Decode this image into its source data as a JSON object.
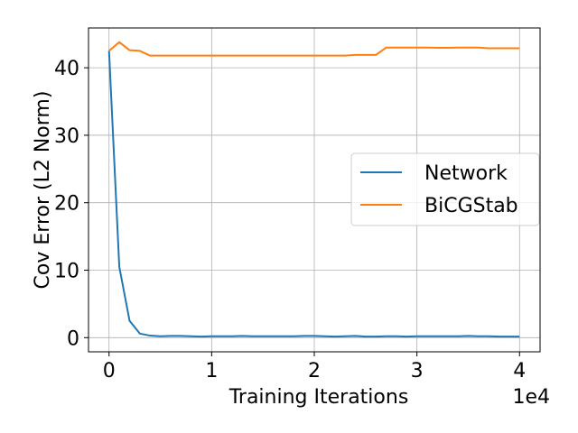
{
  "chart_data": {
    "type": "line",
    "title": "",
    "xlabel": "Training Iterations",
    "ylabel": "Cov Error (L2 Norm)",
    "x_offset_label": "1e4",
    "xlim": [
      -0.2,
      4.2
    ],
    "ylim": [
      -2.1,
      45.9
    ],
    "xticks": [
      0,
      1,
      2,
      3,
      4
    ],
    "xtick_labels": [
      "0",
      "1",
      "2",
      "3",
      "4"
    ],
    "yticks": [
      0,
      10,
      20,
      30,
      40
    ],
    "ytick_labels": [
      "0",
      "10",
      "20",
      "30",
      "40"
    ],
    "grid": true,
    "legend_position": "center-right",
    "x": [
      0,
      0.1,
      0.2,
      0.3,
      0.4,
      0.5,
      0.6,
      0.7,
      0.8,
      0.9,
      1.0,
      1.1,
      1.2,
      1.3,
      1.4,
      1.5,
      1.6,
      1.7,
      1.8,
      1.9,
      2.0,
      2.1,
      2.2,
      2.3,
      2.4,
      2.5,
      2.6,
      2.7,
      2.8,
      2.9,
      3.0,
      3.1,
      3.2,
      3.3,
      3.4,
      3.5,
      3.6,
      3.7,
      3.8,
      3.9,
      4.0
    ],
    "series": [
      {
        "name": "Network",
        "color": "#1f77b4",
        "values": [
          42.5,
          10.5,
          2.5,
          0.6,
          0.3,
          0.2,
          0.25,
          0.25,
          0.2,
          0.15,
          0.2,
          0.2,
          0.2,
          0.25,
          0.2,
          0.2,
          0.2,
          0.2,
          0.2,
          0.25,
          0.25,
          0.2,
          0.15,
          0.2,
          0.25,
          0.15,
          0.15,
          0.2,
          0.2,
          0.15,
          0.2,
          0.2,
          0.2,
          0.2,
          0.2,
          0.25,
          0.2,
          0.2,
          0.15,
          0.15,
          0.15
        ]
      },
      {
        "name": "BiCGStab",
        "color": "#ff7f0e",
        "values": [
          42.5,
          43.8,
          42.6,
          42.5,
          41.8,
          41.8,
          41.8,
          41.8,
          41.8,
          41.8,
          41.8,
          41.8,
          41.8,
          41.8,
          41.8,
          41.8,
          41.8,
          41.8,
          41.8,
          41.8,
          41.8,
          41.8,
          41.8,
          41.8,
          41.9,
          41.9,
          41.9,
          43.0,
          43.0,
          43.0,
          43.0,
          43.0,
          42.95,
          42.95,
          43.0,
          43.0,
          43.0,
          42.9,
          42.9,
          42.9,
          42.9
        ]
      }
    ]
  }
}
